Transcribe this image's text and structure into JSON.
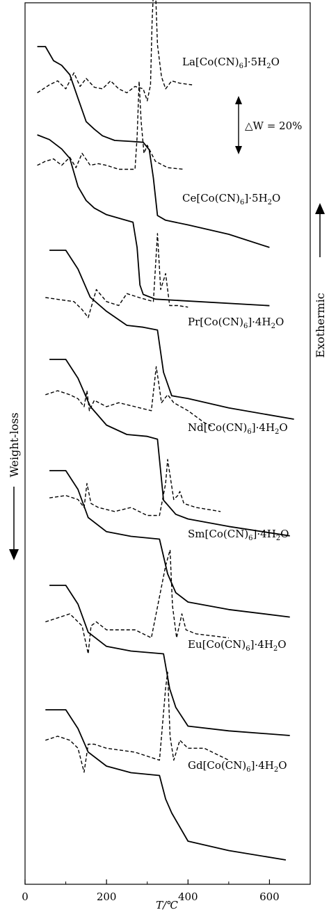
{
  "chart_data": {
    "type": "line",
    "xlabel": "T/℃",
    "ylabel_left": "Weight-loss",
    "ylabel_right": "Exothermic",
    "xlim": [
      0,
      700
    ],
    "xticks": [
      0,
      200,
      400,
      600
    ],
    "tick_labels": [
      "0",
      "200",
      "400",
      "600"
    ],
    "scale_annotation": "△W = 20%",
    "styles": {
      "tg": "solid",
      "dta": "dashed",
      "color": "#000000"
    },
    "series": [
      {
        "name": "La[Co(CN)6]·5H2O",
        "label_parts": [
          "La[Co(CN)",
          "6",
          "]·5H",
          "2",
          "O"
        ],
        "tg": [
          [
            30,
            0
          ],
          [
            50,
            0
          ],
          [
            70,
            15
          ],
          [
            90,
            20
          ],
          [
            110,
            30
          ],
          [
            130,
            55
          ],
          [
            150,
            80
          ],
          [
            170,
            88
          ],
          [
            190,
            95
          ],
          [
            220,
            100
          ],
          [
            260,
            101
          ],
          [
            290,
            102
          ],
          [
            305,
            110
          ],
          [
            315,
            140
          ],
          [
            325,
            180
          ],
          [
            345,
            185
          ],
          [
            400,
            190
          ],
          [
            500,
            200
          ],
          [
            600,
            214
          ]
        ],
        "dta": [
          [
            30,
            10
          ],
          [
            60,
            0
          ],
          [
            80,
            -5
          ],
          [
            100,
            5
          ],
          [
            120,
            -15
          ],
          [
            135,
            2
          ],
          [
            150,
            -8
          ],
          [
            170,
            3
          ],
          [
            190,
            5
          ],
          [
            210,
            -5
          ],
          [
            230,
            5
          ],
          [
            250,
            10
          ],
          [
            270,
            2
          ],
          [
            290,
            5
          ],
          [
            300,
            20
          ],
          [
            308,
            0
          ],
          [
            312,
            -80
          ],
          [
            318,
            -150
          ],
          [
            325,
            -50
          ],
          [
            335,
            -10
          ],
          [
            345,
            5
          ],
          [
            360,
            -5
          ],
          [
            380,
            -2
          ],
          [
            410,
            0
          ]
        ]
      },
      {
        "name": "Ce[Co(CN)6]·5H2O",
        "label_parts": [
          "Ce[Co(CN)",
          "6",
          "]·5H",
          "2",
          "O"
        ],
        "tg": [
          [
            30,
            0
          ],
          [
            60,
            5
          ],
          [
            90,
            15
          ],
          [
            110,
            25
          ],
          [
            130,
            55
          ],
          [
            150,
            70
          ],
          [
            170,
            78
          ],
          [
            200,
            85
          ],
          [
            240,
            90
          ],
          [
            265,
            93
          ],
          [
            275,
            120
          ],
          [
            282,
            160
          ],
          [
            290,
            170
          ],
          [
            320,
            175
          ],
          [
            600,
            182
          ]
        ],
        "dta": [
          [
            30,
            5
          ],
          [
            50,
            0
          ],
          [
            70,
            -3
          ],
          [
            90,
            5
          ],
          [
            110,
            -5
          ],
          [
            125,
            8
          ],
          [
            140,
            -10
          ],
          [
            160,
            5
          ],
          [
            180,
            3
          ],
          [
            200,
            5
          ],
          [
            230,
            10
          ],
          [
            270,
            10
          ],
          [
            275,
            -30
          ],
          [
            280,
            -100
          ],
          [
            285,
            -50
          ],
          [
            292,
            -10
          ],
          [
            300,
            -20
          ],
          [
            320,
            0
          ],
          [
            350,
            8
          ],
          [
            390,
            10
          ]
        ]
      },
      {
        "name": "Pr[Co(CN)6]·4H2O",
        "label_parts": [
          "Pr[Co(CN)",
          "6",
          "]·4H",
          "2",
          "O"
        ],
        "tg": [
          [
            60,
            0
          ],
          [
            100,
            0
          ],
          [
            130,
            20
          ],
          [
            160,
            50
          ],
          [
            200,
            65
          ],
          [
            250,
            80
          ],
          [
            290,
            82
          ],
          [
            325,
            85
          ],
          [
            340,
            130
          ],
          [
            360,
            155
          ],
          [
            400,
            158
          ],
          [
            500,
            168
          ],
          [
            660,
            180
          ]
        ],
        "dta": [
          [
            50,
            0
          ],
          [
            90,
            3
          ],
          [
            120,
            5
          ],
          [
            140,
            15
          ],
          [
            155,
            25
          ],
          [
            175,
            -10
          ],
          [
            200,
            5
          ],
          [
            230,
            10
          ],
          [
            250,
            -5
          ],
          [
            280,
            0
          ],
          [
            315,
            5
          ],
          [
            325,
            -80
          ],
          [
            333,
            -10
          ],
          [
            345,
            -30
          ],
          [
            355,
            10
          ],
          [
            375,
            10
          ],
          [
            400,
            12
          ]
        ]
      },
      {
        "name": "Nd[Co(CN)6]·4H2O",
        "label_parts": [
          "Nd[Co(CN)",
          "6",
          "]·4H",
          "2",
          "O"
        ],
        "tg": [
          [
            60,
            0
          ],
          [
            100,
            0
          ],
          [
            130,
            20
          ],
          [
            160,
            50
          ],
          [
            200,
            70
          ],
          [
            250,
            80
          ],
          [
            300,
            82
          ],
          [
            325,
            85
          ],
          [
            340,
            150
          ],
          [
            370,
            165
          ],
          [
            400,
            170
          ],
          [
            500,
            178
          ],
          [
            650,
            188
          ]
        ],
        "dta": [
          [
            50,
            -15
          ],
          [
            80,
            -20
          ],
          [
            110,
            -15
          ],
          [
            130,
            -10
          ],
          [
            145,
            0
          ],
          [
            152,
            -20
          ],
          [
            158,
            5
          ],
          [
            170,
            -8
          ],
          [
            200,
            0
          ],
          [
            230,
            -5
          ],
          [
            270,
            0
          ],
          [
            310,
            5
          ],
          [
            322,
            -50
          ],
          [
            328,
            -30
          ],
          [
            335,
            -5
          ],
          [
            350,
            -15
          ],
          [
            365,
            -5
          ],
          [
            400,
            5
          ],
          [
            440,
            20
          ],
          [
            460,
            25
          ]
        ]
      },
      {
        "name": "Sm[Co(CN)6]·4H2O",
        "label_parts": [
          "Sm[Co(CN)",
          "6",
          "]·4H",
          "2",
          "O"
        ],
        "tg": [
          [
            60,
            0
          ],
          [
            100,
            0
          ],
          [
            130,
            20
          ],
          [
            155,
            50
          ],
          [
            200,
            65
          ],
          [
            260,
            70
          ],
          [
            330,
            73
          ],
          [
            350,
            110
          ],
          [
            370,
            130
          ],
          [
            400,
            140
          ],
          [
            500,
            148
          ],
          [
            650,
            156
          ]
        ],
        "dta": [
          [
            60,
            -12
          ],
          [
            100,
            -15
          ],
          [
            130,
            -10
          ],
          [
            145,
            0
          ],
          [
            152,
            -30
          ],
          [
            162,
            -5
          ],
          [
            180,
            0
          ],
          [
            220,
            5
          ],
          [
            260,
            0
          ],
          [
            300,
            10
          ],
          [
            330,
            10
          ],
          [
            345,
            -30
          ],
          [
            350,
            -60
          ],
          [
            356,
            -40
          ],
          [
            365,
            -10
          ],
          [
            375,
            -15
          ],
          [
            380,
            -20
          ],
          [
            390,
            -5
          ],
          [
            420,
            0
          ],
          [
            480,
            5
          ]
        ]
      },
      {
        "name": "Eu[Co(CN)6]·4H2O",
        "label_parts": [
          "Eu[Co(CN)",
          "6",
          "]·4H",
          "2",
          "O"
        ],
        "tg": [
          [
            60,
            0
          ],
          [
            100,
            0
          ],
          [
            130,
            20
          ],
          [
            155,
            50
          ],
          [
            200,
            65
          ],
          [
            260,
            70
          ],
          [
            340,
            73
          ],
          [
            355,
            110
          ],
          [
            370,
            130
          ],
          [
            400,
            150
          ],
          [
            500,
            155
          ],
          [
            650,
            160
          ]
        ],
        "dta": [
          [
            50,
            -10
          ],
          [
            80,
            -15
          ],
          [
            110,
            -20
          ],
          [
            140,
            -5
          ],
          [
            155,
            30
          ],
          [
            162,
            -5
          ],
          [
            175,
            -10
          ],
          [
            200,
            0
          ],
          [
            230,
            0
          ],
          [
            270,
            0
          ],
          [
            310,
            10
          ],
          [
            345,
            -80
          ],
          [
            356,
            -100
          ],
          [
            362,
            -30
          ],
          [
            372,
            10
          ],
          [
            385,
            -20
          ],
          [
            395,
            0
          ],
          [
            420,
            5
          ],
          [
            500,
            10
          ]
        ]
      },
      {
        "name": "Gd[Co(CN)6]·4H2O",
        "label_parts": [
          "Gd[Co(CN)",
          "6",
          "]·4H",
          "2",
          "O"
        ],
        "tg": [
          [
            50,
            0
          ],
          [
            100,
            0
          ],
          [
            130,
            20
          ],
          [
            155,
            45
          ],
          [
            200,
            60
          ],
          [
            260,
            67
          ],
          [
            330,
            70
          ],
          [
            345,
            95
          ],
          [
            360,
            110
          ],
          [
            400,
            140
          ],
          [
            500,
            150
          ],
          [
            640,
            160
          ]
        ],
        "dta": [
          [
            50,
            -15
          ],
          [
            80,
            -20
          ],
          [
            110,
            -15
          ],
          [
            130,
            -5
          ],
          [
            145,
            25
          ],
          [
            155,
            -10
          ],
          [
            170,
            -10
          ],
          [
            200,
            -5
          ],
          [
            270,
            0
          ],
          [
            330,
            10
          ],
          [
            345,
            -80
          ],
          [
            350,
            -100
          ],
          [
            356,
            -20
          ],
          [
            365,
            10
          ],
          [
            380,
            -15
          ],
          [
            400,
            -5
          ],
          [
            440,
            -5
          ],
          [
            480,
            5
          ],
          [
            500,
            10
          ]
        ]
      }
    ]
  }
}
